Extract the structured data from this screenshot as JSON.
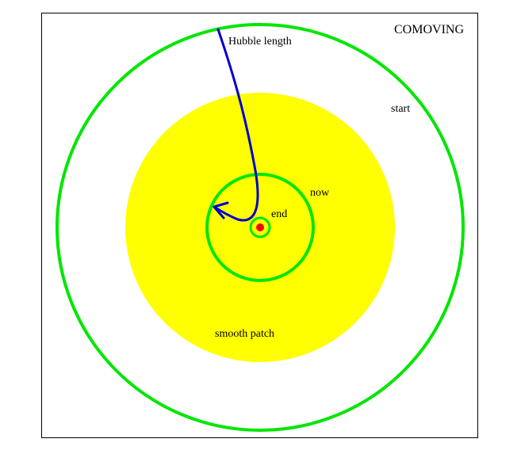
{
  "diagram": {
    "title": "COMOVING",
    "labels": {
      "hubble_length": "Hubble length",
      "start": "start",
      "now": "now",
      "end": "end",
      "smooth_patch": "smooth patch"
    },
    "colors": {
      "circles": "#00e600",
      "patch": "#ffff00",
      "curve": "#0000cc",
      "center": "#ff0000",
      "frame": "#000000"
    }
  }
}
